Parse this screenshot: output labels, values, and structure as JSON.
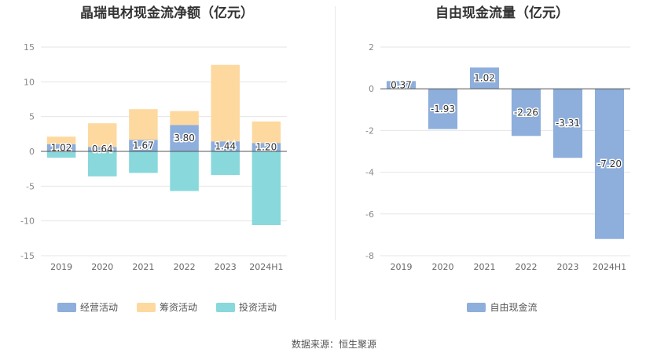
{
  "chart_data": [
    {
      "type": "bar",
      "stacked": true,
      "title": "晶瑞电材现金流净额（亿元）",
      "categories": [
        "2019",
        "2020",
        "2021",
        "2022",
        "2023",
        "2024H1"
      ],
      "series": [
        {
          "name": "经营活动",
          "color": "#8eaedc",
          "values": [
            1.02,
            0.64,
            1.67,
            3.8,
            1.44,
            1.2
          ]
        },
        {
          "name": "筹资活动",
          "color": "#fdd9a0",
          "values": [
            1.1,
            3.4,
            4.4,
            2.0,
            11.0,
            3.1
          ]
        },
        {
          "name": "投资活动",
          "color": "#88d8dc",
          "values": [
            -0.9,
            -3.6,
            -3.1,
            -5.7,
            -3.4,
            -10.6
          ]
        }
      ],
      "data_labels": [
        "1.02",
        "0.64",
        "1.67",
        "3.80",
        "1.44",
        "1.20"
      ],
      "ylim": [
        -15,
        15
      ],
      "yticks": [
        -15,
        -10,
        -5,
        0,
        5,
        10,
        15
      ],
      "legend": "bottom",
      "grid": true
    },
    {
      "type": "bar",
      "title": "自由现金流量（亿元）",
      "categories": [
        "2019",
        "2020",
        "2021",
        "2022",
        "2023",
        "2024H1"
      ],
      "series": [
        {
          "name": "自由现金流",
          "color": "#8eaedc",
          "values": [
            0.37,
            -1.93,
            1.02,
            -2.26,
            -3.31,
            -7.2
          ]
        }
      ],
      "data_labels": [
        "0.37",
        "-1.93",
        "1.02",
        "-2.26",
        "-3.31",
        "-7.20"
      ],
      "ylim": [
        -8,
        2
      ],
      "yticks": [
        -8,
        -6,
        -4,
        -2,
        0,
        2
      ],
      "legend": "bottom",
      "grid": true
    }
  ],
  "footer": {
    "source": "数据来源：恒生聚源"
  }
}
